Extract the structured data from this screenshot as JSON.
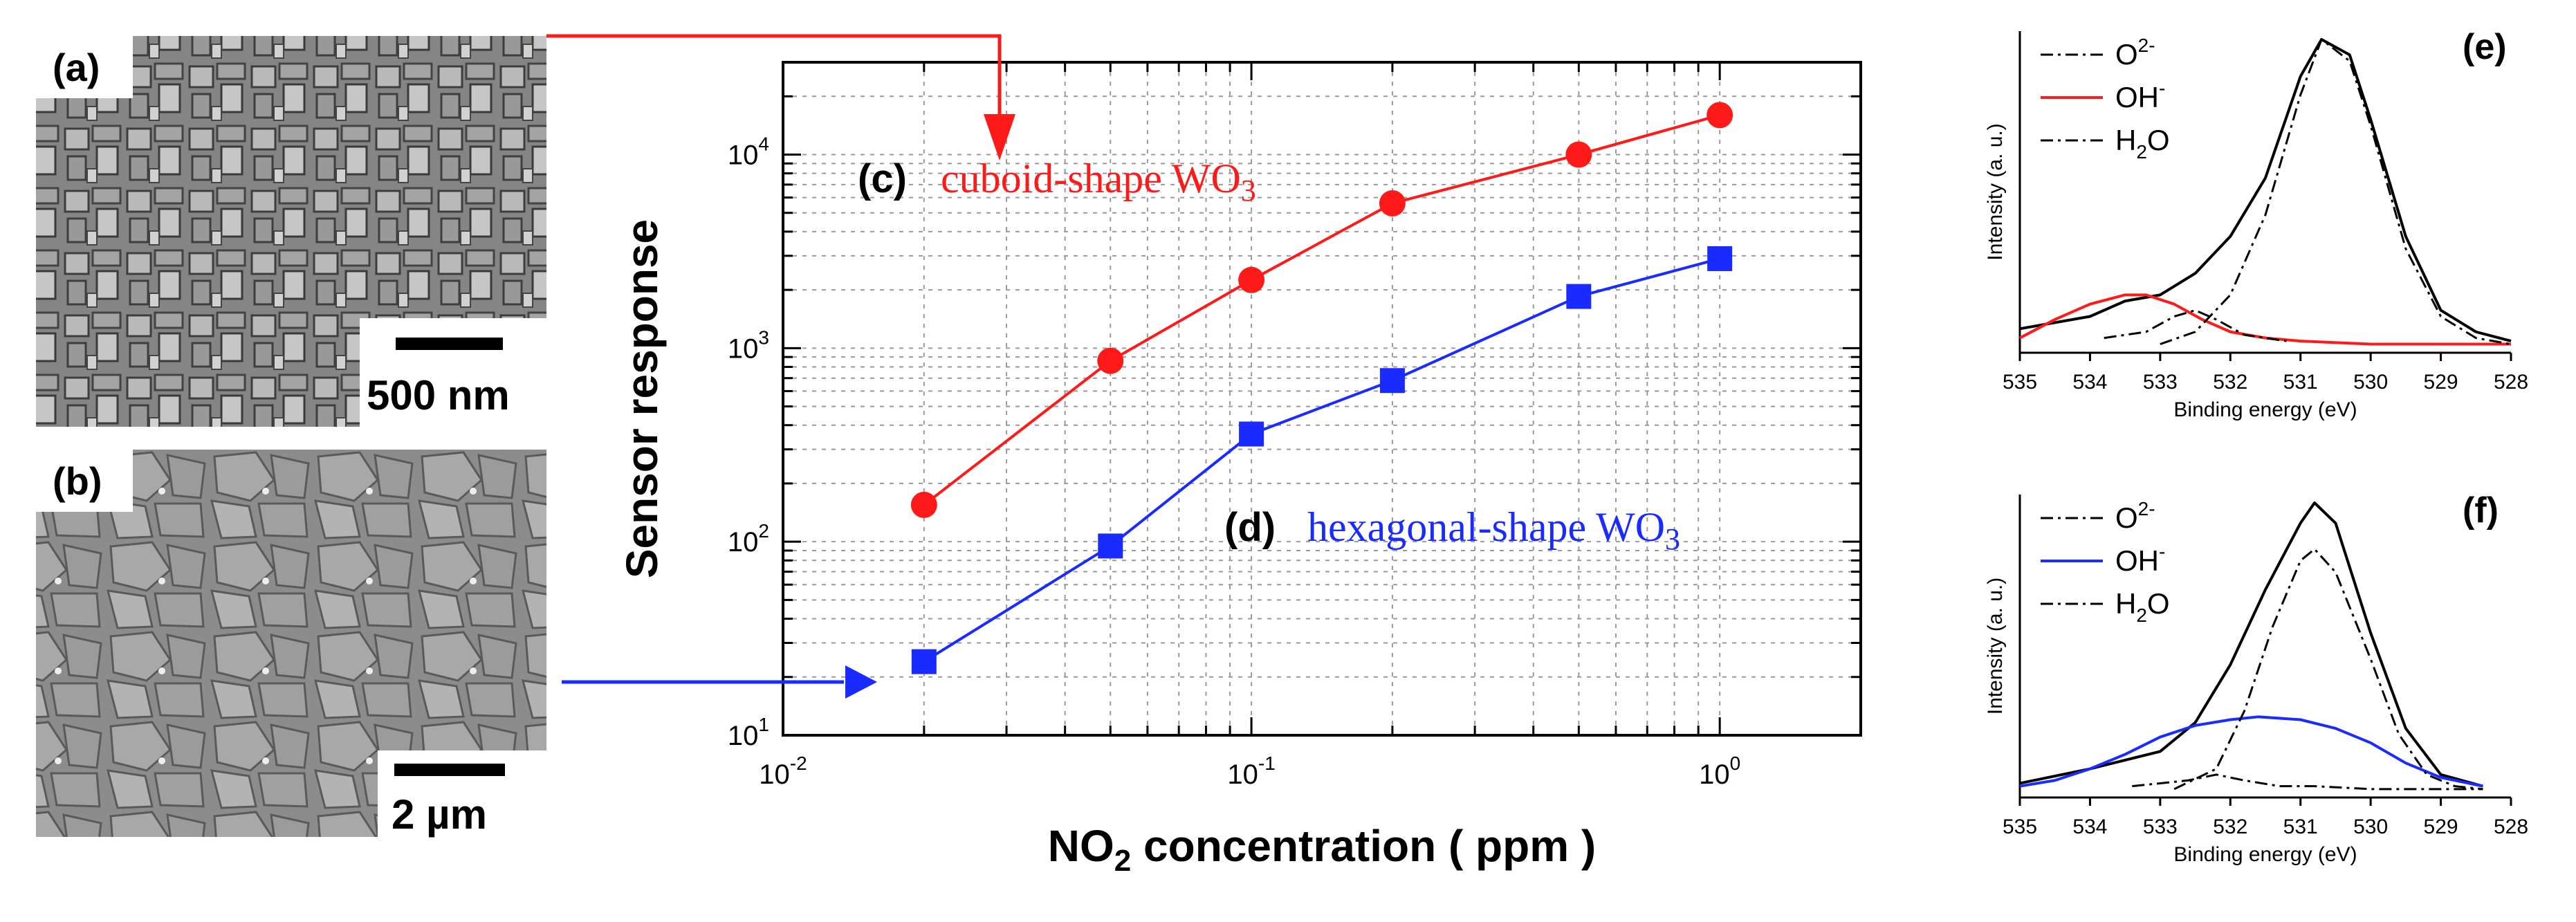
{
  "panels": {
    "a": {
      "label": "(a)",
      "scale_bar": "500 nm"
    },
    "b": {
      "label": "(b)",
      "scale_bar": "2 µm"
    }
  },
  "colors": {
    "cuboid": "#ff1a1a",
    "hexagonal": "#1a2bff",
    "fit": "#000000",
    "axis": "#000000",
    "grid": "#9a9a9a",
    "sem": "#7a7a7a"
  },
  "chart_data": [
    {
      "id": "main",
      "type": "line",
      "xlabel": "NO2 concentration ( ppm )",
      "ylabel": "Sensor response",
      "x_scale": "log",
      "y_scale": "log",
      "xlim": [
        0.01,
        2
      ],
      "ylim": [
        10,
        30000
      ],
      "x_ticks": [
        {
          "value": 0.01,
          "base": "10",
          "exp": "-2"
        },
        {
          "value": 0.1,
          "base": "10",
          "exp": "-1"
        },
        {
          "value": 1,
          "base": "10",
          "exp": "0"
        }
      ],
      "y_ticks": [
        {
          "value": 10,
          "base": "10",
          "exp": "1"
        },
        {
          "value": 100,
          "base": "10",
          "exp": "2"
        },
        {
          "value": 1000,
          "base": "10",
          "exp": "3"
        },
        {
          "value": 10000,
          "base": "10",
          "exp": "4"
        }
      ],
      "grid": true,
      "series": [
        {
          "key": "cuboid",
          "marker": "circle",
          "x": [
            0.02,
            0.05,
            0.1,
            0.2,
            0.5,
            1.0
          ],
          "y": [
            155,
            860,
            2250,
            5600,
            10000,
            16000
          ]
        },
        {
          "key": "hexagonal",
          "marker": "square",
          "x": [
            0.02,
            0.05,
            0.1,
            0.2,
            0.5,
            1.0
          ],
          "y": [
            24,
            95,
            360,
            680,
            1850,
            2900
          ]
        }
      ],
      "annotations": [
        {
          "key": "c",
          "tag": "(c)",
          "text": "cuboid-shape WO",
          "sub": "3"
        },
        {
          "key": "d",
          "tag": "(d)",
          "text": "hexagonal-shape WO",
          "sub": "3"
        }
      ]
    },
    {
      "id": "e",
      "type": "line",
      "label": "(e)",
      "xlabel": "Binding energy (eV)",
      "ylabel": "Intensity (a. u.)",
      "xlim": [
        535,
        528
      ],
      "x_ticks": [
        535,
        534,
        533,
        532,
        531,
        530,
        529,
        528
      ],
      "legend": [
        {
          "base": "O",
          "sup": "2-",
          "sub": "",
          "style": "dashdot"
        },
        {
          "base": "OH",
          "sup": "-",
          "sub": "",
          "style": "solid-accent"
        },
        {
          "base": "H",
          "sup": "",
          "sub": "2",
          "tail": "O",
          "style": "dashdot"
        }
      ],
      "series": [
        {
          "name": "envelope",
          "x": [
            535.0,
            534.0,
            533.5,
            533.0,
            532.5,
            532.0,
            531.5,
            531.0,
            530.7,
            530.3,
            530.0,
            529.5,
            529.0,
            528.5,
            528.0
          ],
          "y": [
            0.06,
            0.1,
            0.15,
            0.17,
            0.24,
            0.36,
            0.55,
            0.88,
            1.0,
            0.95,
            0.74,
            0.36,
            0.12,
            0.05,
            0.02
          ]
        },
        {
          "name": "OH-",
          "x": [
            535.0,
            534.5,
            534.0,
            533.5,
            533.2,
            532.8,
            532.4,
            532.0,
            531.5,
            531.0,
            530.0,
            529.0,
            528.0
          ],
          "y": [
            0.03,
            0.09,
            0.14,
            0.17,
            0.17,
            0.14,
            0.09,
            0.05,
            0.03,
            0.02,
            0.01,
            0.01,
            0.01
          ]
        },
        {
          "name": "O2-",
          "x": [
            533.0,
            532.5,
            532.0,
            531.5,
            531.0,
            530.7,
            530.3,
            530.0,
            529.5,
            529.0,
            528.5,
            528.0
          ],
          "y": [
            0.01,
            0.05,
            0.17,
            0.43,
            0.82,
            1.0,
            0.93,
            0.72,
            0.32,
            0.1,
            0.03,
            0.01
          ]
        },
        {
          "name": "H2O",
          "x": [
            533.8,
            533.2,
            532.8,
            532.5,
            532.2,
            531.8,
            531.2
          ],
          "y": [
            0.03,
            0.05,
            0.1,
            0.12,
            0.09,
            0.04,
            0.02
          ]
        }
      ]
    },
    {
      "id": "f",
      "type": "line",
      "label": "(f)",
      "xlabel": "Binding energy (eV)",
      "ylabel": "Intensity (a. u.)",
      "xlim": [
        535,
        528
      ],
      "x_ticks": [
        535,
        534,
        533,
        532,
        531,
        530,
        529,
        528
      ],
      "legend": [
        {
          "base": "O",
          "sup": "2-",
          "sub": "",
          "style": "dashdot"
        },
        {
          "base": "OH",
          "sup": "-",
          "sub": "",
          "style": "solid-accent"
        },
        {
          "base": "H",
          "sup": "",
          "sub": "2",
          "tail": "O",
          "style": "dashdot"
        }
      ],
      "series": [
        {
          "name": "envelope",
          "x": [
            535.0,
            534.0,
            533.0,
            532.5,
            532.0,
            531.5,
            531.0,
            530.8,
            530.5,
            530.0,
            529.5,
            529.0,
            528.4
          ],
          "y": [
            0.03,
            0.08,
            0.14,
            0.24,
            0.44,
            0.7,
            0.93,
            1.0,
            0.93,
            0.55,
            0.22,
            0.06,
            0.02
          ]
        },
        {
          "name": "OH-",
          "x": [
            535.0,
            534.5,
            534.0,
            533.5,
            533.0,
            532.5,
            532.0,
            531.6,
            531.0,
            530.5,
            530.0,
            529.5,
            529.0,
            528.4
          ],
          "y": [
            0.02,
            0.04,
            0.08,
            0.13,
            0.19,
            0.23,
            0.25,
            0.26,
            0.25,
            0.22,
            0.17,
            0.1,
            0.05,
            0.02
          ]
        },
        {
          "name": "O2-",
          "x": [
            532.8,
            532.2,
            531.8,
            531.4,
            531.0,
            530.8,
            530.5,
            530.0,
            529.6,
            529.2,
            528.8,
            528.4
          ],
          "y": [
            0.01,
            0.08,
            0.28,
            0.57,
            0.8,
            0.84,
            0.76,
            0.46,
            0.2,
            0.06,
            0.02,
            0.01
          ]
        },
        {
          "name": "H2O",
          "x": [
            533.4,
            532.6,
            532.2,
            531.8,
            531.3,
            530.8,
            530.0,
            529.0,
            528.4
          ],
          "y": [
            0.02,
            0.04,
            0.06,
            0.04,
            0.02,
            0.02,
            0.01,
            0.01,
            0.01
          ]
        }
      ]
    }
  ]
}
